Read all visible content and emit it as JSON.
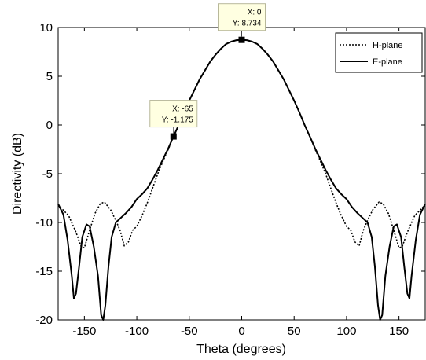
{
  "chart_data": {
    "type": "line",
    "xlabel": "Theta (degrees)",
    "ylabel": "Directivity (dB)",
    "xlim": [
      -175,
      175
    ],
    "ylim": [
      -20,
      10
    ],
    "xticks": [
      -150,
      -100,
      -50,
      0,
      50,
      100,
      150
    ],
    "yticks": [
      -20,
      -15,
      -10,
      -5,
      0,
      5,
      10
    ],
    "grid": false,
    "legend_position": "top-right",
    "series": [
      {
        "name": "H-plane",
        "style": "dotted",
        "color": "#000000",
        "points": [
          [
            -175,
            -8.2
          ],
          [
            -165,
            -9.3
          ],
          [
            -158,
            -11.0
          ],
          [
            -153,
            -12.5
          ],
          [
            -150,
            -12.6
          ],
          [
            -145,
            -10.8
          ],
          [
            -140,
            -9.1
          ],
          [
            -135,
            -8.1
          ],
          [
            -131,
            -7.9
          ],
          [
            -125,
            -8.7
          ],
          [
            -120,
            -9.8
          ],
          [
            -116,
            -10.8
          ],
          [
            -112,
            -12.4
          ],
          [
            -108,
            -12.0
          ],
          [
            -104,
            -10.8
          ],
          [
            -100,
            -10.4
          ],
          [
            -95,
            -9.3
          ],
          [
            -90,
            -8.0
          ],
          [
            -85,
            -6.5
          ],
          [
            -80,
            -5.0
          ],
          [
            -75,
            -3.7
          ],
          [
            -70,
            -2.5
          ],
          [
            -65,
            -1.2
          ],
          [
            -60,
            0.0
          ],
          [
            -55,
            1.3
          ],
          [
            -50,
            2.5
          ],
          [
            -45,
            3.6
          ],
          [
            -40,
            4.7
          ],
          [
            -35,
            5.6
          ],
          [
            -30,
            6.5
          ],
          [
            -25,
            7.2
          ],
          [
            -20,
            7.8
          ],
          [
            -15,
            8.3
          ],
          [
            -10,
            8.55
          ],
          [
            -5,
            8.7
          ],
          [
            0,
            8.734
          ],
          [
            5,
            8.7
          ],
          [
            10,
            8.55
          ],
          [
            15,
            8.3
          ],
          [
            20,
            7.8
          ],
          [
            25,
            7.2
          ],
          [
            30,
            6.5
          ],
          [
            35,
            5.6
          ],
          [
            40,
            4.7
          ],
          [
            45,
            3.6
          ],
          [
            50,
            2.5
          ],
          [
            55,
            1.3
          ],
          [
            60,
            0.0
          ],
          [
            65,
            -1.2
          ],
          [
            70,
            -2.5
          ],
          [
            75,
            -3.7
          ],
          [
            80,
            -5.0
          ],
          [
            85,
            -6.5
          ],
          [
            90,
            -8.0
          ],
          [
            95,
            -9.3
          ],
          [
            100,
            -10.4
          ],
          [
            104,
            -10.8
          ],
          [
            108,
            -12.0
          ],
          [
            112,
            -12.4
          ],
          [
            116,
            -10.8
          ],
          [
            120,
            -9.8
          ],
          [
            125,
            -8.7
          ],
          [
            131,
            -7.9
          ],
          [
            135,
            -8.1
          ],
          [
            140,
            -9.1
          ],
          [
            145,
            -10.8
          ],
          [
            150,
            -12.6
          ],
          [
            153,
            -12.5
          ],
          [
            158,
            -11.0
          ],
          [
            165,
            -9.3
          ],
          [
            175,
            -8.2
          ]
        ]
      },
      {
        "name": "E-plane",
        "style": "solid",
        "color": "#000000",
        "points": [
          [
            -175,
            -8.1
          ],
          [
            -170,
            -9.2
          ],
          [
            -166,
            -11.8
          ],
          [
            -162,
            -15.5
          ],
          [
            -160,
            -17.8
          ],
          [
            -158,
            -17.3
          ],
          [
            -155,
            -14.5
          ],
          [
            -152,
            -11.5
          ],
          [
            -148,
            -10.2
          ],
          [
            -145,
            -10.4
          ],
          [
            -141,
            -12.5
          ],
          [
            -137,
            -15.5
          ],
          [
            -134,
            -19.5
          ],
          [
            -132,
            -20.0
          ],
          [
            -130,
            -18.5
          ],
          [
            -127,
            -14.5
          ],
          [
            -124,
            -11.5
          ],
          [
            -120,
            -10.0
          ],
          [
            -115,
            -9.5
          ],
          [
            -110,
            -9.0
          ],
          [
            -105,
            -8.4
          ],
          [
            -100,
            -7.6
          ],
          [
            -95,
            -7.1
          ],
          [
            -90,
            -6.5
          ],
          [
            -85,
            -5.6
          ],
          [
            -80,
            -4.6
          ],
          [
            -75,
            -3.5
          ],
          [
            -70,
            -2.4
          ],
          [
            -65,
            -1.175
          ],
          [
            -60,
            0.0
          ],
          [
            -55,
            1.3
          ],
          [
            -50,
            2.5
          ],
          [
            -45,
            3.6
          ],
          [
            -40,
            4.7
          ],
          [
            -35,
            5.6
          ],
          [
            -30,
            6.5
          ],
          [
            -25,
            7.2
          ],
          [
            -20,
            7.8
          ],
          [
            -15,
            8.3
          ],
          [
            -10,
            8.55
          ],
          [
            -5,
            8.7
          ],
          [
            0,
            8.734
          ],
          [
            5,
            8.7
          ],
          [
            10,
            8.55
          ],
          [
            15,
            8.3
          ],
          [
            20,
            7.8
          ],
          [
            25,
            7.2
          ],
          [
            30,
            6.5
          ],
          [
            35,
            5.6
          ],
          [
            40,
            4.7
          ],
          [
            45,
            3.6
          ],
          [
            50,
            2.5
          ],
          [
            55,
            1.3
          ],
          [
            60,
            0.0
          ],
          [
            65,
            -1.175
          ],
          [
            70,
            -2.4
          ],
          [
            75,
            -3.5
          ],
          [
            80,
            -4.6
          ],
          [
            85,
            -5.6
          ],
          [
            90,
            -6.5
          ],
          [
            95,
            -7.1
          ],
          [
            100,
            -7.6
          ],
          [
            105,
            -8.4
          ],
          [
            110,
            -9.0
          ],
          [
            115,
            -9.5
          ],
          [
            120,
            -10.0
          ],
          [
            124,
            -11.5
          ],
          [
            127,
            -14.5
          ],
          [
            130,
            -18.5
          ],
          [
            132,
            -20.0
          ],
          [
            134,
            -19.5
          ],
          [
            137,
            -15.5
          ],
          [
            141,
            -12.5
          ],
          [
            145,
            -10.4
          ],
          [
            148,
            -10.2
          ],
          [
            152,
            -11.5
          ],
          [
            155,
            -14.5
          ],
          [
            158,
            -17.3
          ],
          [
            160,
            -17.8
          ],
          [
            162,
            -15.5
          ],
          [
            166,
            -11.8
          ],
          [
            170,
            -9.2
          ],
          [
            175,
            -8.1
          ]
        ]
      }
    ],
    "datatips": [
      {
        "x": 0,
        "y": 8.734,
        "x_text": "X: 0",
        "y_text": "Y: 8.734"
      },
      {
        "x": -65,
        "y": -1.175,
        "x_text": "X: -65",
        "y_text": "Y: -1.175"
      }
    ]
  }
}
